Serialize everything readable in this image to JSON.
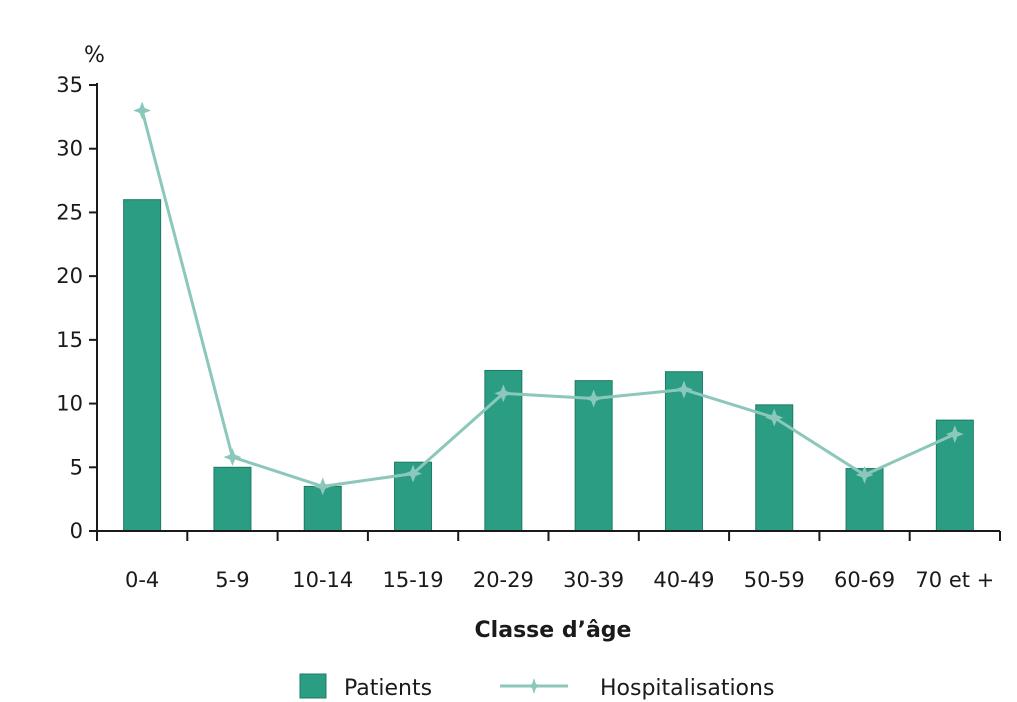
{
  "chart_data": {
    "type": "bar",
    "categories": [
      "0-4",
      "5-9",
      "10-14",
      "15-19",
      "20-29",
      "30-39",
      "40-49",
      "50-59",
      "60-69",
      "70 et +"
    ],
    "series": [
      {
        "name": "Patients",
        "type": "bar",
        "color": "#2a9d82",
        "values": [
          26.0,
          5.0,
          3.5,
          5.4,
          12.6,
          11.8,
          12.5,
          9.9,
          4.9,
          8.7
        ]
      },
      {
        "name": "Hospitalisations",
        "type": "line",
        "color": "#8cc7bb",
        "marker": "star",
        "values": [
          33.0,
          5.8,
          3.5,
          4.5,
          10.8,
          10.4,
          11.1,
          8.9,
          4.4,
          7.6
        ]
      }
    ],
    "title": "",
    "xlabel": "Classe d’âge",
    "ylabel": "%",
    "ylim": [
      0,
      35
    ],
    "yticks": [
      0,
      5,
      10,
      15,
      20,
      25,
      30,
      35
    ],
    "grid": false,
    "legend_position": "bottom-center"
  }
}
